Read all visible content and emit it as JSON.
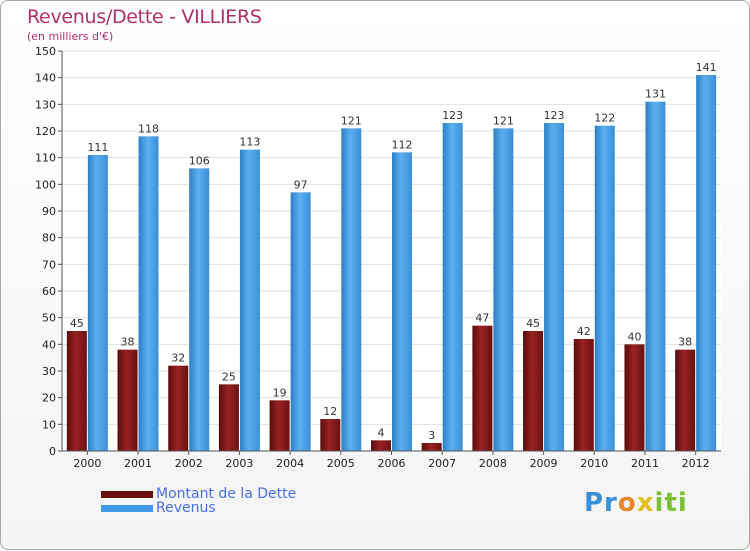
{
  "title": "Revenus/Dette - VILLIERS",
  "subtitle": "(en milliers d'€)",
  "legend": {
    "debt_label": "Montant de la Dette",
    "revenue_label": "Revenus"
  },
  "logo": {
    "p1": "Pr",
    "p2": "o",
    "p3": "x",
    "p4": "iti"
  },
  "colors": {
    "debt": "#8b1a1a",
    "revenue": "#4aa3e8",
    "title": "#b0306a"
  },
  "chart_data": {
    "type": "bar",
    "title": "Revenus/Dette - VILLIERS",
    "ylabel": "(en milliers d'€)",
    "xlabel": "",
    "categories": [
      "2000",
      "2001",
      "2002",
      "2003",
      "2004",
      "2005",
      "2006",
      "2007",
      "2008",
      "2009",
      "2010",
      "2011",
      "2012"
    ],
    "series": [
      {
        "name": "Montant de la Dette",
        "values": [
          45,
          38,
          32,
          25,
          19,
          12,
          4,
          3,
          47,
          45,
          42,
          40,
          38
        ]
      },
      {
        "name": "Revenus",
        "values": [
          111,
          118,
          106,
          113,
          97,
          121,
          112,
          123,
          121,
          123,
          122,
          131,
          141
        ]
      }
    ],
    "ylim": [
      0,
      150
    ],
    "yticks": [
      0,
      10,
      20,
      30,
      40,
      50,
      60,
      70,
      80,
      90,
      100,
      110,
      120,
      130,
      140,
      150
    ],
    "grid": true,
    "legend_position": "bottom-left"
  }
}
